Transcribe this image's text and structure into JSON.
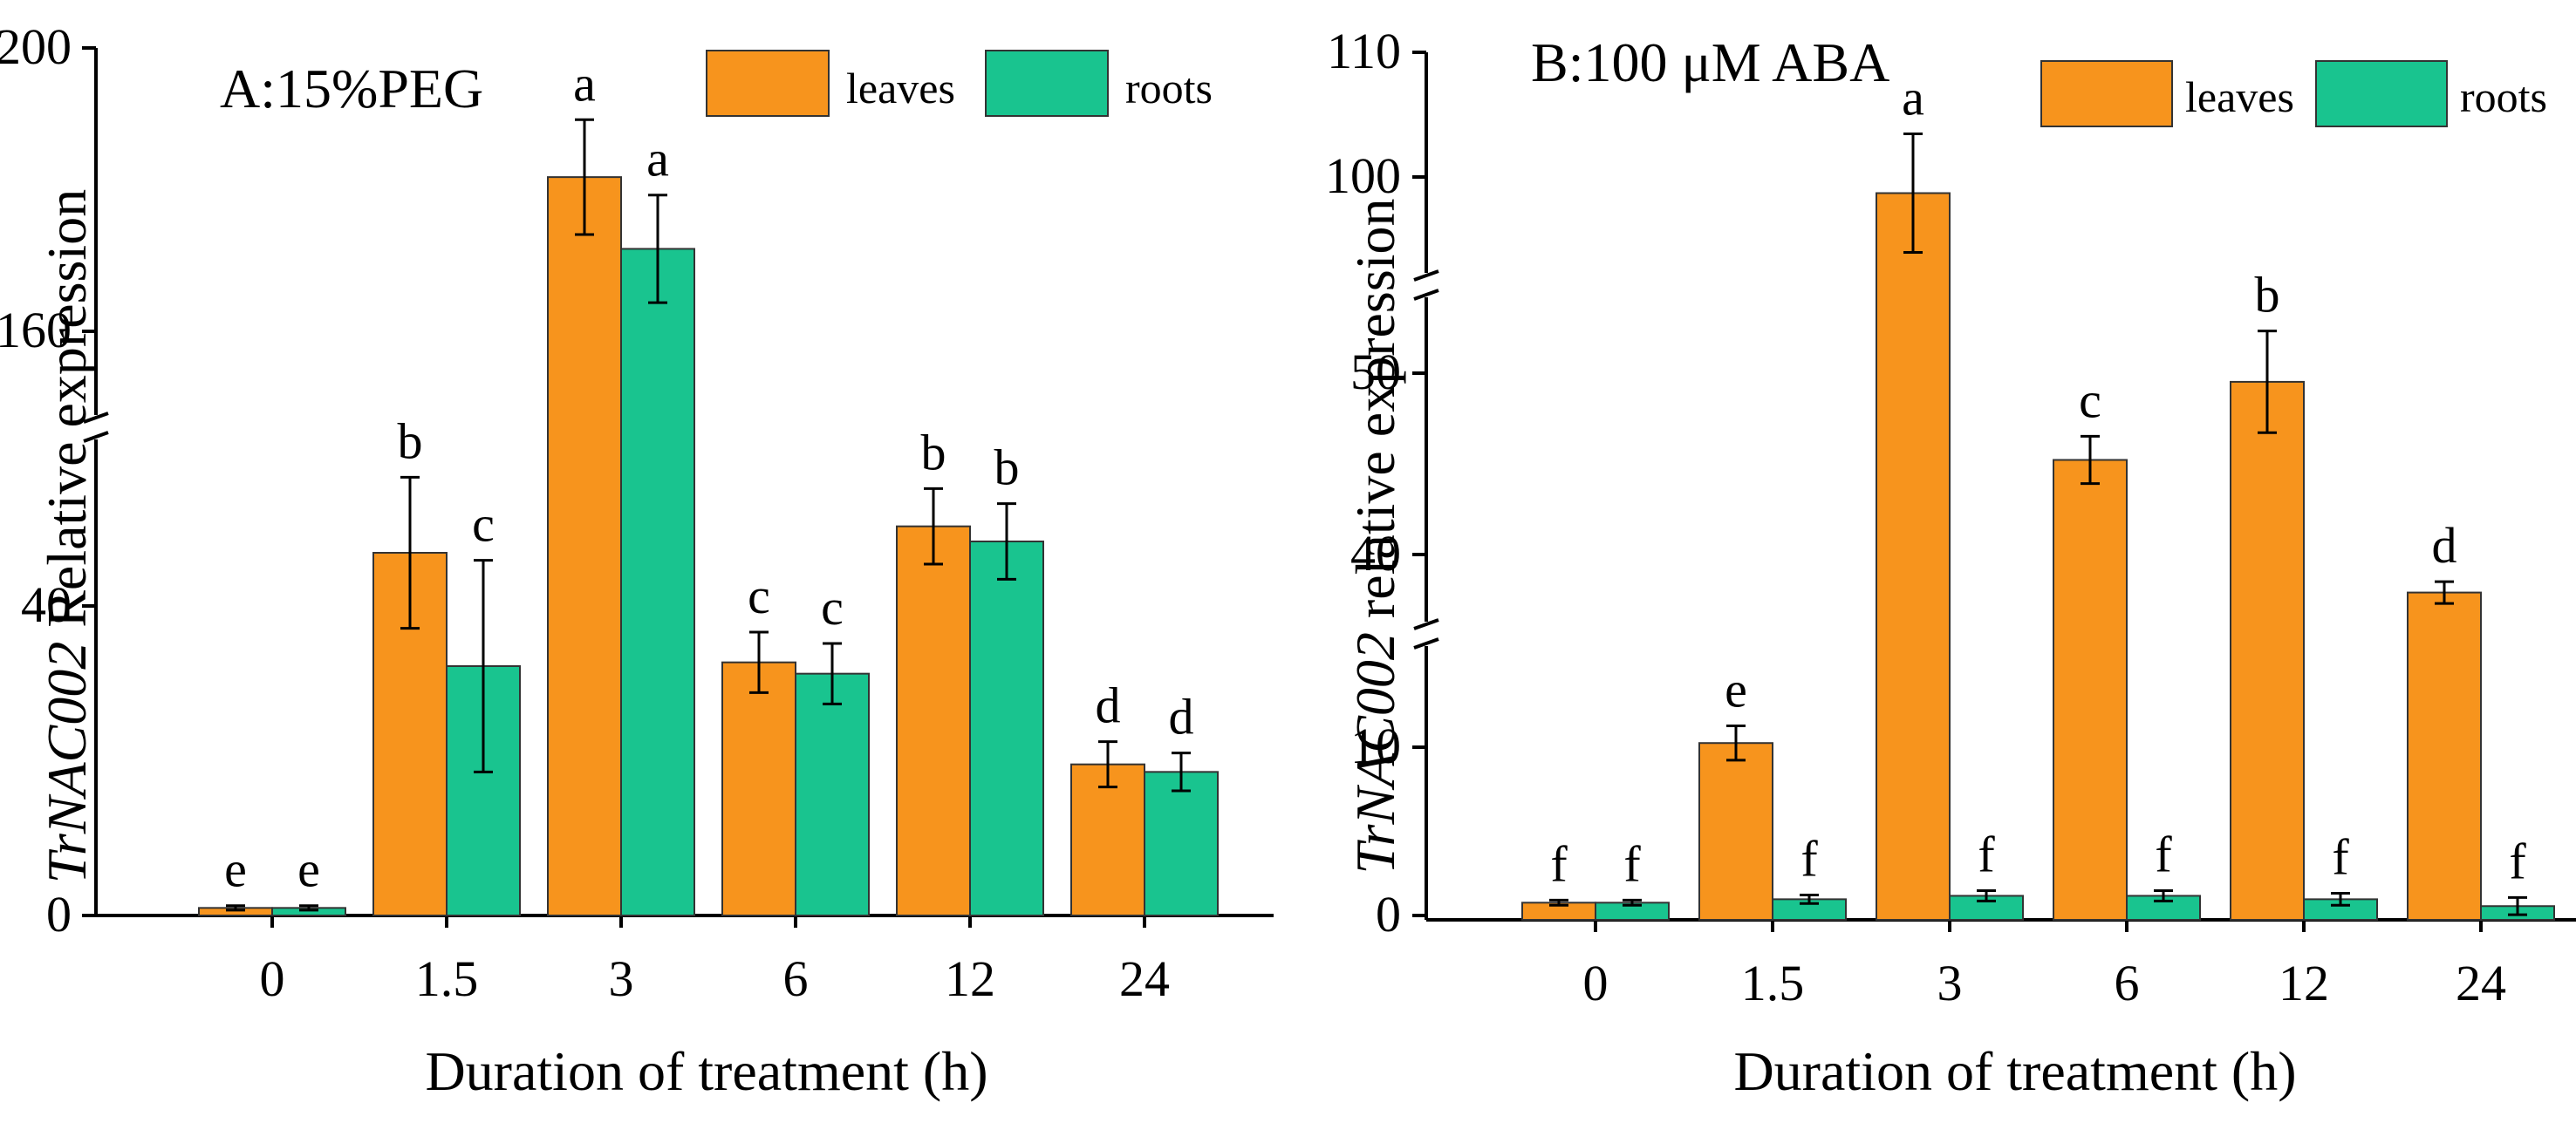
{
  "colors": {
    "leaves": "#F7941D",
    "roots": "#19C48F",
    "axis": "#000000"
  },
  "chart_data": [
    {
      "type": "bar",
      "title": "A:15%PEG",
      "ylabel_italic": "TrNAC002",
      "ylabel_rest": " Relative expression",
      "xlabel": "Duration of treatment (h)",
      "categories": [
        "0",
        "1.5",
        "3",
        "6",
        "12",
        "24"
      ],
      "series": [
        {
          "name": "leaves",
          "values": [
            1,
            48,
            182,
            33.5,
            51.5,
            20
          ],
          "errors": [
            0.3,
            10,
            8,
            4,
            5,
            3
          ]
        },
        {
          "name": "roots",
          "values": [
            1,
            33,
            172,
            32,
            49.5,
            19
          ],
          "errors": [
            0.3,
            14,
            7.5,
            4,
            5,
            2.5
          ]
        }
      ],
      "significance": [
        [
          "e",
          "b",
          "a",
          "c",
          "b",
          "d"
        ],
        [
          "e",
          "c",
          "a",
          "c",
          "b",
          "d"
        ]
      ],
      "axis_break": {
        "lower": [
          0,
          60
        ],
        "upper": [
          152,
          200
        ]
      },
      "yticks": [
        "0",
        "40",
        "160",
        "200"
      ],
      "legend": [
        "leaves",
        "roots"
      ]
    },
    {
      "type": "bar",
      "title": "B:100 μM ABA",
      "ylabel_italic": "TrNAC002",
      "ylabel_rest": " relative expression",
      "xlabel": "Duration of treatment (h)",
      "categories": [
        "0",
        "1.5",
        "3",
        "6",
        "12",
        "24"
      ],
      "series": [
        {
          "name": "leaves",
          "values": [
            1,
            10.3,
            100.5,
            46,
            50.3,
            38.7
          ],
          "errors": [
            0.15,
            1,
            4,
            1.3,
            2.8,
            0.6
          ]
        },
        {
          "name": "roots",
          "values": [
            1,
            1.2,
            1.4,
            1.4,
            1.2,
            0.8
          ],
          "errors": [
            0.15,
            0.25,
            0.3,
            0.3,
            0.35,
            0.5
          ]
        }
      ],
      "significance": [
        [
          "f",
          "e",
          "a",
          "c",
          "b",
          "d"
        ],
        [
          "f",
          "f",
          "f",
          "f",
          "f",
          "f"
        ]
      ],
      "axis_break": {
        "lower": [
          0,
          16
        ],
        "middle": [
          37,
          55
        ],
        "upper": [
          95,
          110
        ]
      },
      "yticks": [
        "0",
        "10",
        "40",
        "50",
        "100",
        "110"
      ],
      "legend": [
        "leaves",
        "roots"
      ]
    }
  ]
}
